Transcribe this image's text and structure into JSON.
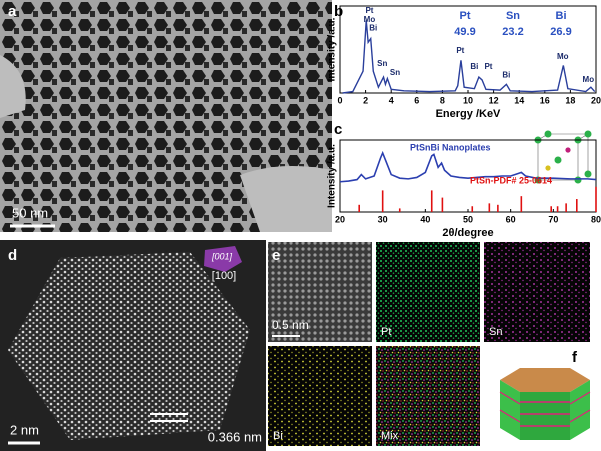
{
  "panels": {
    "a": {
      "label": "a",
      "scale_bar": "50 nm"
    },
    "b": {
      "label": "b"
    },
    "c": {
      "label": "c"
    },
    "d": {
      "label": "d",
      "zone_axis": "[001]",
      "direction": "[100]",
      "scale_bar": "2 nm",
      "spacing": "0.366 nm"
    },
    "e": {
      "label": "e",
      "scale_bar": "0.5 nm",
      "maps": [
        "Pt",
        "Sn",
        "Bi",
        "Mix"
      ]
    },
    "f": {
      "label": "f"
    }
  },
  "chart_data": [
    {
      "type": "line",
      "xlabel": "Energy /KeV",
      "ylabel": "Intensity /a.u.",
      "xlim": [
        0,
        20
      ],
      "xticks": [
        0,
        2,
        4,
        6,
        8,
        10,
        12,
        14,
        16,
        18,
        20
      ],
      "ylim": [
        0,
        120
      ],
      "color": "#2a3f9c",
      "x": [
        0.2,
        1.0,
        1.8,
        2.05,
        2.2,
        2.4,
        2.6,
        3.0,
        3.4,
        3.55,
        3.7,
        4.0,
        5,
        7,
        9,
        9.2,
        9.45,
        9.7,
        10.5,
        10.85,
        11.1,
        11.4,
        12.5,
        13.0,
        13.3,
        15,
        17,
        17.45,
        17.8,
        19.2,
        19.6,
        19.9
      ],
      "values": [
        0,
        2,
        30,
        100,
        70,
        75,
        30,
        8,
        22,
        12,
        20,
        5,
        3,
        2,
        3,
        10,
        45,
        8,
        6,
        22,
        18,
        5,
        4,
        12,
        3,
        2,
        4,
        38,
        6,
        2,
        8,
        2
      ],
      "annotations": [
        {
          "text": "Pt",
          "x": 2.3,
          "y": 113
        },
        {
          "text": "Mo",
          "x": 2.3,
          "y": 101
        },
        {
          "text": "Bi",
          "x": 2.6,
          "y": 89
        },
        {
          "text": "Sn",
          "x": 3.3,
          "y": 40
        },
        {
          "text": "Sn",
          "x": 4.3,
          "y": 28
        },
        {
          "text": "Pt",
          "x": 9.4,
          "y": 58
        },
        {
          "text": "Bi",
          "x": 10.5,
          "y": 36
        },
        {
          "text": "Pt",
          "x": 11.6,
          "y": 36
        },
        {
          "text": "Bi",
          "x": 13.0,
          "y": 24
        },
        {
          "text": "Mo",
          "x": 17.4,
          "y": 50
        },
        {
          "text": "Mo",
          "x": 19.4,
          "y": 18
        }
      ],
      "composition": {
        "elements": [
          "Pt",
          "Sn",
          "Bi"
        ],
        "values": [
          49.9,
          23.2,
          26.9
        ],
        "color": "#2a50c0"
      }
    },
    {
      "type": "line",
      "xlabel": "2θ/degree",
      "ylabel": "Intensity /a.u.",
      "xlim": [
        20,
        80
      ],
      "xticks": [
        20,
        30,
        40,
        50,
        60,
        70,
        80
      ],
      "ylim": [
        0,
        100
      ],
      "series": [
        {
          "name": "PtSnBi Nanoplates",
          "color": "#2b3fb0",
          "x": [
            20,
            22,
            24,
            25,
            26,
            28,
            29.5,
            30,
            30.8,
            32,
            34,
            36,
            38,
            40,
            41.5,
            42,
            43,
            43.8,
            44.5,
            46,
            48,
            50,
            52,
            54,
            56,
            58,
            60,
            61.5,
            62.5,
            63.5,
            66,
            70,
            74,
            78,
            80
          ],
          "values": [
            42,
            43,
            45,
            52,
            46,
            50,
            75,
            82,
            70,
            52,
            47,
            46,
            48,
            55,
            78,
            80,
            62,
            68,
            58,
            50,
            48,
            47,
            48,
            49,
            49,
            50,
            50,
            53,
            55,
            50,
            47,
            47,
            46,
            46,
            45
          ]
        },
        {
          "name": "PtSn-PDF# 25-0614",
          "color": "#e01010",
          "type": "stick",
          "x": [
            24.5,
            30,
            34,
            41.5,
            44,
            51,
            55,
            57,
            62.5,
            69.5,
            71,
            73,
            75.5,
            80
          ],
          "values": [
            10,
            30,
            5,
            30,
            20,
            8,
            12,
            10,
            22,
            8,
            8,
            12,
            18,
            35
          ]
        }
      ]
    }
  ]
}
